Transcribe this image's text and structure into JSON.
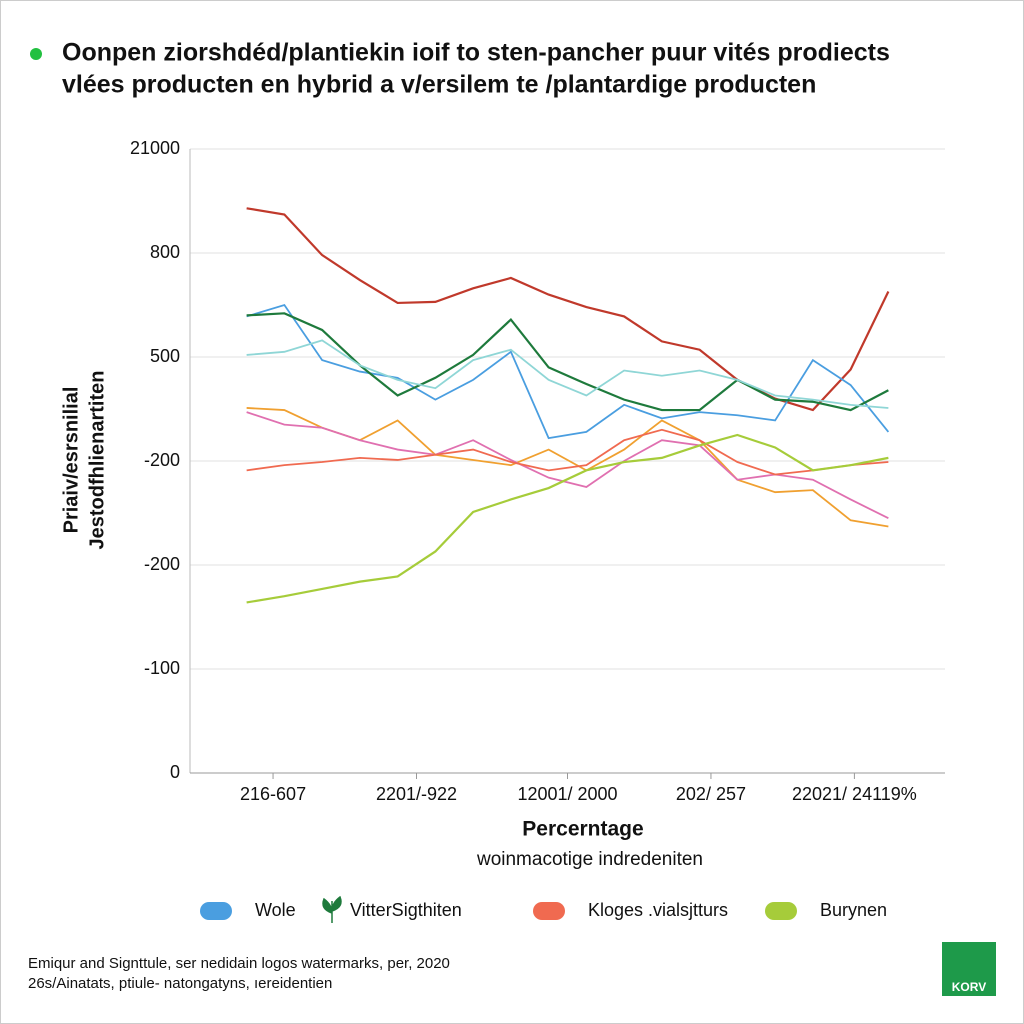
{
  "chart_data": {
    "type": "line",
    "title": [
      "Oonpen ziorshdéd/plantiekin ioif to sten-pancher puur vités prodiects",
      "vlées producten en hybrid a v/ersilem te /plantardige producten"
    ],
    "ylabel": [
      "Priaiv/esrsnilial",
      "Jestodfhlienartiten"
    ],
    "xlabel": "Percerntage",
    "subtitle": "woinmacotige indredeniten",
    "footer": [
      "Emiqur and Signttule, ser nedidain logos watermarks, per, 2020",
      "26s/Ainatats, ptiule- natongatyns, ıereidentien"
    ],
    "logo": "KORV",
    "x": [
      0,
      1,
      2,
      3,
      4,
      5,
      6,
      7,
      8,
      9,
      10,
      11,
      12,
      13,
      14,
      15,
      16,
      17
    ],
    "xlim": [
      -1.5,
      18.5
    ],
    "xticks": [
      {
        "value": 0.7,
        "label": "216-607"
      },
      {
        "value": 4.5,
        "label": "2201/-922"
      },
      {
        "value": 8.5,
        "label": "12001/ 2000"
      },
      {
        "value": 12.3,
        "label": "202/ 257"
      },
      {
        "value": 16.1,
        "label": "22021/ 24119%"
      }
    ],
    "ylim": [
      0,
      6
    ],
    "yticks": [
      {
        "value": 0,
        "label": "0"
      },
      {
        "value": 1,
        "label": "-100"
      },
      {
        "value": 2,
        "label": "-200"
      },
      {
        "value": 3,
        "label": "-200"
      },
      {
        "value": 4,
        "label": "500"
      },
      {
        "value": 5,
        "label": "800"
      },
      {
        "value": 6,
        "label": "21000"
      }
    ],
    "grid": true,
    "series": [
      {
        "color": "#c0392b",
        "values": [
          5.43,
          5.37,
          4.98,
          4.74,
          4.52,
          4.53,
          4.66,
          4.76,
          4.6,
          4.48,
          4.39,
          4.15,
          4.07,
          3.78,
          3.6,
          3.49,
          3.88,
          4.63
        ]
      },
      {
        "name": "Wole",
        "color": "#4a9ee0",
        "values": [
          4.39,
          4.5,
          3.97,
          3.86,
          3.8,
          3.59,
          3.78,
          4.05,
          3.22,
          3.28,
          3.54,
          3.41,
          3.47,
          3.44,
          3.39,
          3.97,
          3.73,
          3.28
        ]
      },
      {
        "name": "VitterSigthiten",
        "color": "#1e7a3c",
        "values": [
          4.4,
          4.42,
          4.26,
          3.92,
          3.63,
          3.8,
          4.02,
          4.36,
          3.9,
          3.74,
          3.59,
          3.49,
          3.49,
          3.78,
          3.59,
          3.57,
          3.49,
          3.68
        ]
      },
      {
        "color": "#8fd6d6",
        "values": [
          4.02,
          4.05,
          4.16,
          3.92,
          3.78,
          3.7,
          3.97,
          4.07,
          3.78,
          3.63,
          3.87,
          3.82,
          3.87,
          3.78,
          3.63,
          3.59,
          3.54,
          3.51
        ]
      },
      {
        "color": "#f0a030",
        "values": [
          3.51,
          3.49,
          3.32,
          3.2,
          3.39,
          3.06,
          3.01,
          2.96,
          3.11,
          2.91,
          3.11,
          3.39,
          3.2,
          2.82,
          2.7,
          2.72,
          2.43,
          2.37
        ]
      },
      {
        "color": "#e070b0",
        "values": [
          3.47,
          3.35,
          3.32,
          3.2,
          3.11,
          3.06,
          3.2,
          3.01,
          2.84,
          2.75,
          3.0,
          3.2,
          3.15,
          2.82,
          2.87,
          2.82,
          2.63,
          2.45
        ]
      },
      {
        "name": "Kloges .vialsjtturs",
        "color": "#f06a50",
        "values": [
          2.91,
          2.96,
          2.99,
          3.03,
          3.01,
          3.06,
          3.11,
          2.99,
          2.91,
          2.96,
          3.2,
          3.3,
          3.2,
          2.99,
          2.87,
          2.91,
          2.96,
          2.99
        ]
      },
      {
        "name": "Burynen",
        "color": "#a6cc3a",
        "values": [
          1.64,
          1.7,
          1.77,
          1.84,
          1.89,
          2.13,
          2.51,
          2.63,
          2.74,
          2.91,
          2.99,
          3.03,
          3.15,
          3.25,
          3.13,
          2.91,
          2.96,
          3.03
        ]
      }
    ]
  }
}
